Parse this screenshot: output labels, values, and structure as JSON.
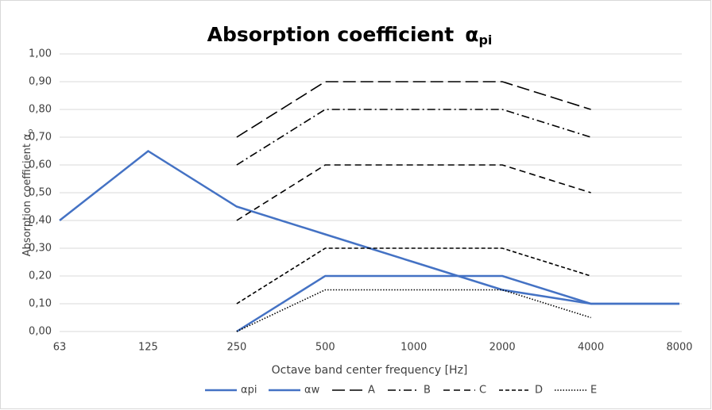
{
  "chart_data": {
    "type": "line",
    "title": "Absorption coefficient",
    "title_symbol": "α",
    "title_subscript": "pi",
    "y_label": "Absorption coefficient α",
    "y_label_subscript": "p",
    "x_label": "Octave band center frequency [Hz]",
    "categories": [
      "63",
      "125",
      "250",
      "500",
      "1000",
      "2000",
      "4000",
      "8000"
    ],
    "ylim": [
      0,
      1
    ],
    "yticks": [
      {
        "value": 0,
        "label": "0,00"
      },
      {
        "value": 0.1,
        "label": "0,10"
      },
      {
        "value": 0.2,
        "label": "0,20"
      },
      {
        "value": 0.3,
        "label": "0,30"
      },
      {
        "value": 0.4,
        "label": "0,40"
      },
      {
        "value": 0.5,
        "label": "0,50"
      },
      {
        "value": 0.6,
        "label": "0,60"
      },
      {
        "value": 0.7,
        "label": "0,70"
      },
      {
        "value": 0.8,
        "label": "0,80"
      },
      {
        "value": 0.9,
        "label": "0,90"
      },
      {
        "value": 1,
        "label": "1,00"
      }
    ],
    "grid": true,
    "legend": "bottom",
    "series": [
      {
        "name": "αpi",
        "color": "#4472c4",
        "dash": "solid",
        "values": [
          0.4,
          0.65,
          0.45,
          0.35,
          0.25,
          0.15,
          0.1,
          0.1
        ]
      },
      {
        "name": "αw",
        "color": "#4472c4",
        "dash": "solid",
        "values": [
          null,
          null,
          0,
          0.2,
          0.2,
          0.2,
          0.1,
          0.1
        ]
      },
      {
        "name": "A",
        "color": "#000000",
        "dash": "long-dash",
        "values": [
          null,
          null,
          0.7,
          0.9,
          0.9,
          0.9,
          0.8,
          null
        ]
      },
      {
        "name": "B",
        "color": "#000000",
        "dash": "dash-dot",
        "values": [
          null,
          null,
          0.6,
          0.8,
          0.8,
          0.8,
          0.7,
          null
        ]
      },
      {
        "name": "C",
        "color": "#000000",
        "dash": "dash",
        "values": [
          null,
          null,
          0.4,
          0.6,
          0.6,
          0.6,
          0.5,
          null
        ]
      },
      {
        "name": "D",
        "color": "#000000",
        "dash": "short-dash",
        "values": [
          null,
          null,
          0.1,
          0.3,
          0.3,
          0.3,
          0.2,
          null
        ]
      },
      {
        "name": "E",
        "color": "#000000",
        "dash": "dot",
        "values": [
          null,
          null,
          0,
          0.15,
          0.15,
          0.15,
          0.05,
          null
        ]
      }
    ]
  }
}
